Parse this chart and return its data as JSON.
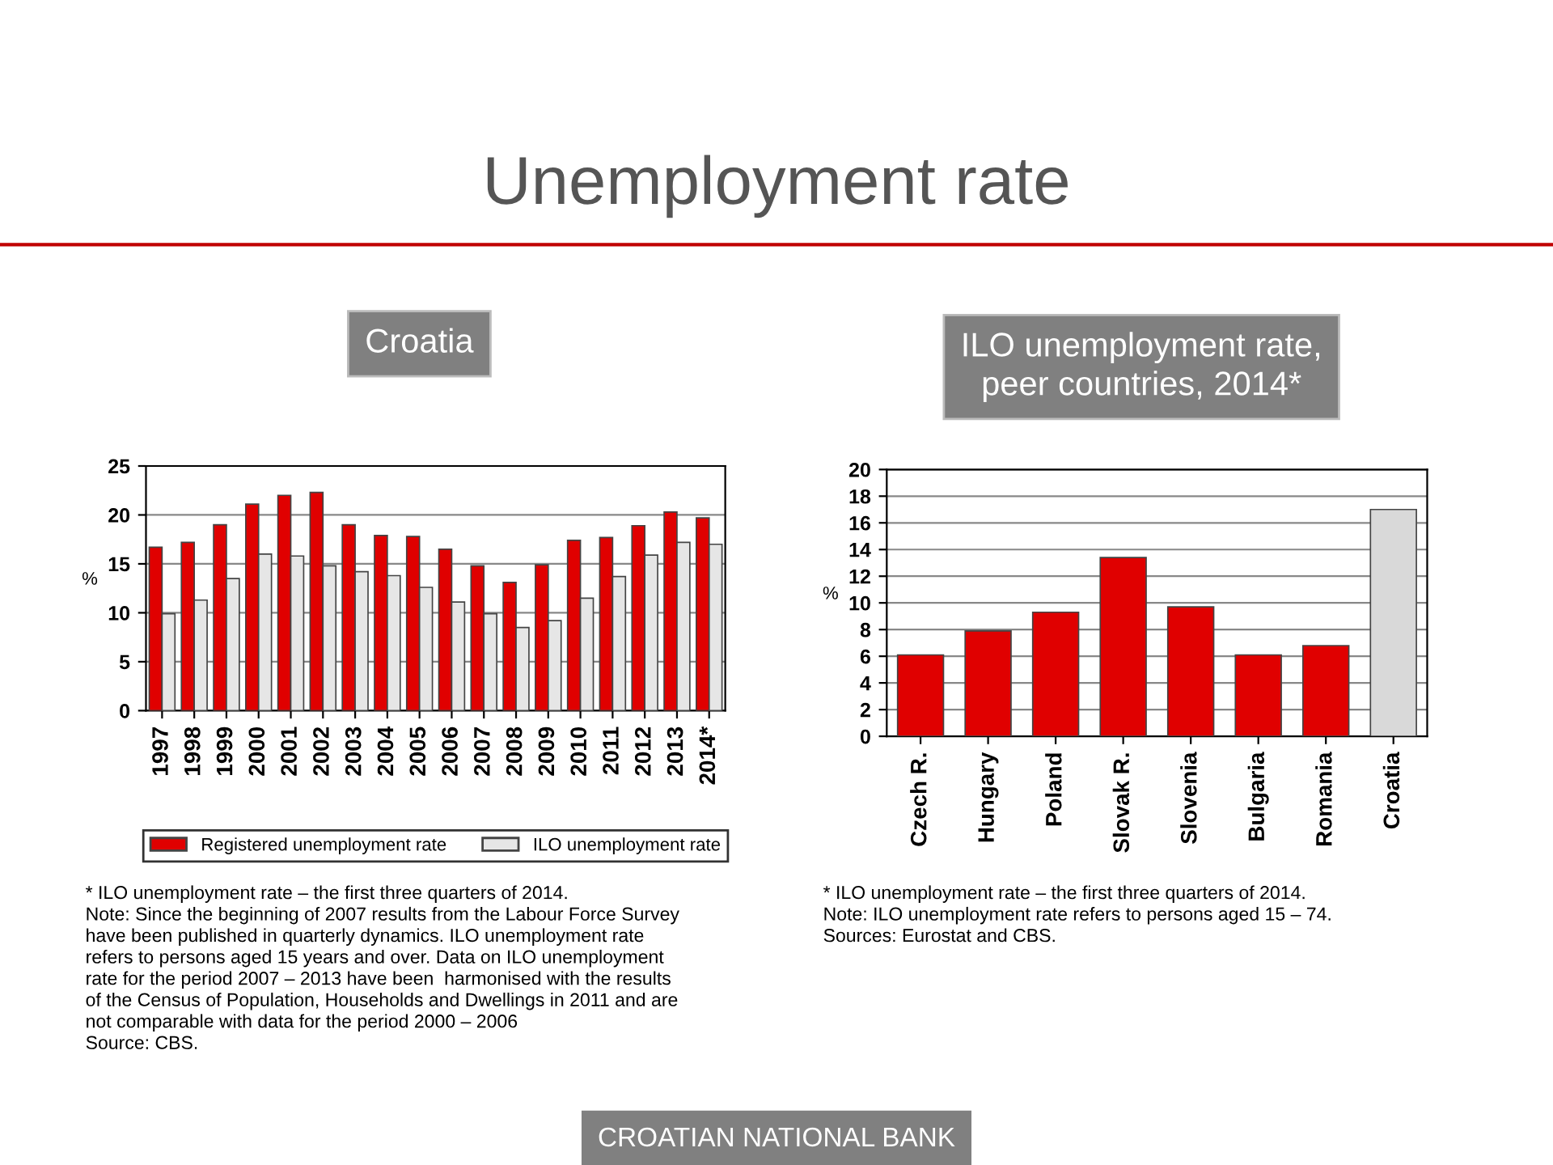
{
  "chart_data": [
    {
      "type": "bar",
      "title": "Unemployment rate",
      "subtitle": "Croatia",
      "ylabel": "%",
      "categories": [
        "1997",
        "1998",
        "1999",
        "2000",
        "2001",
        "2002",
        "2003",
        "2004",
        "2005",
        "2006",
        "2007",
        "2008",
        "2009",
        "2010",
        "2011",
        "2012",
        "2013",
        "2014*"
      ],
      "series": [
        {
          "name": "Registered unemployment rate",
          "color": "#e00000",
          "values": [
            16.7,
            17.2,
            19.0,
            21.1,
            22.0,
            22.3,
            19.0,
            17.9,
            17.8,
            16.5,
            14.8,
            13.1,
            14.9,
            17.4,
            17.7,
            18.9,
            20.3,
            19.7
          ]
        },
        {
          "name": "ILO unemployment rate",
          "color": "#e6e6e6",
          "values": [
            9.9,
            11.3,
            13.5,
            16.0,
            15.8,
            14.8,
            14.2,
            13.8,
            12.6,
            11.1,
            9.9,
            8.5,
            9.2,
            11.5,
            13.7,
            15.9,
            17.2,
            17.0
          ]
        }
      ],
      "ylim": [
        0,
        25
      ],
      "yticks": [
        0,
        5,
        10,
        15,
        20,
        25
      ],
      "grid": "y",
      "legend": "bottom",
      "annotations": [
        "* ILO unemployment rate – the first three quarters of 2014.\nNote: Since the beginning of 2007 results from the Labour Force Survey\nhave been published in quarterly dynamics. ILO unemployment rate\nrefers to persons aged 15 years and over. Data on ILO unemployment\nrate for the period 2007 – 2013 have been  harmonised with the results\nof the Census of Population, Households and Dwellings in 2011 and are\nnot comparable with data for the period 2000 – 2006\nSource: CBS.",
        "CROATIAN NATIONAL BANK"
      ]
    },
    {
      "type": "bar",
      "subtitle": "ILO unemployment rate,\npeer countries, 2014*",
      "ylabel": "%",
      "categories": [
        "Czech R.",
        "Hungary",
        "Poland",
        "Slovak R.",
        "Slovenia",
        "Bulgaria",
        "Romania",
        "Croatia"
      ],
      "values": [
        6.1,
        7.9,
        9.3,
        13.4,
        9.7,
        6.1,
        6.8,
        17.0
      ],
      "colors": [
        "#e00000",
        "#e00000",
        "#e00000",
        "#e00000",
        "#e00000",
        "#e00000",
        "#e00000",
        "#d9d9d9"
      ],
      "ylim": [
        0,
        20
      ],
      "yticks": [
        0,
        2,
        4,
        6,
        8,
        10,
        12,
        14,
        16,
        18,
        20
      ],
      "grid": "y",
      "annotations": [
        "* ILO unemployment rate – the first three quarters of 2014.\nNote: ILO unemployment rate refers to persons aged 15 – 74.\nSources: Eurostat and CBS."
      ]
    }
  ]
}
